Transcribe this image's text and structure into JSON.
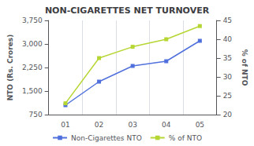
{
  "chart_data": {
    "type": "line",
    "title": "NON-CIGARETTES NET TURNOVER",
    "categories": [
      "01",
      "02",
      "03",
      "04",
      "05"
    ],
    "series": [
      {
        "name": "Non-Cigarettes NTO",
        "values": [
          1050,
          1800,
          2300,
          2450,
          3100
        ],
        "marker": "square"
      },
      {
        "name": "% of NTO",
        "values": [
          23,
          35,
          38,
          40,
          43.5
        ],
        "axis": "y2",
        "marker": "square"
      }
    ],
    "ylabel": "NTO (Rs. Crores)",
    "y2label": "% of NTO",
    "ylim": [
      750,
      3750
    ],
    "yticks": [
      750,
      1500,
      2250,
      3000,
      3750
    ],
    "y2lim": [
      20,
      45
    ],
    "y2ticks": [
      20,
      25,
      30,
      35,
      40,
      45
    ],
    "grid": true,
    "legend": "bottom"
  }
}
